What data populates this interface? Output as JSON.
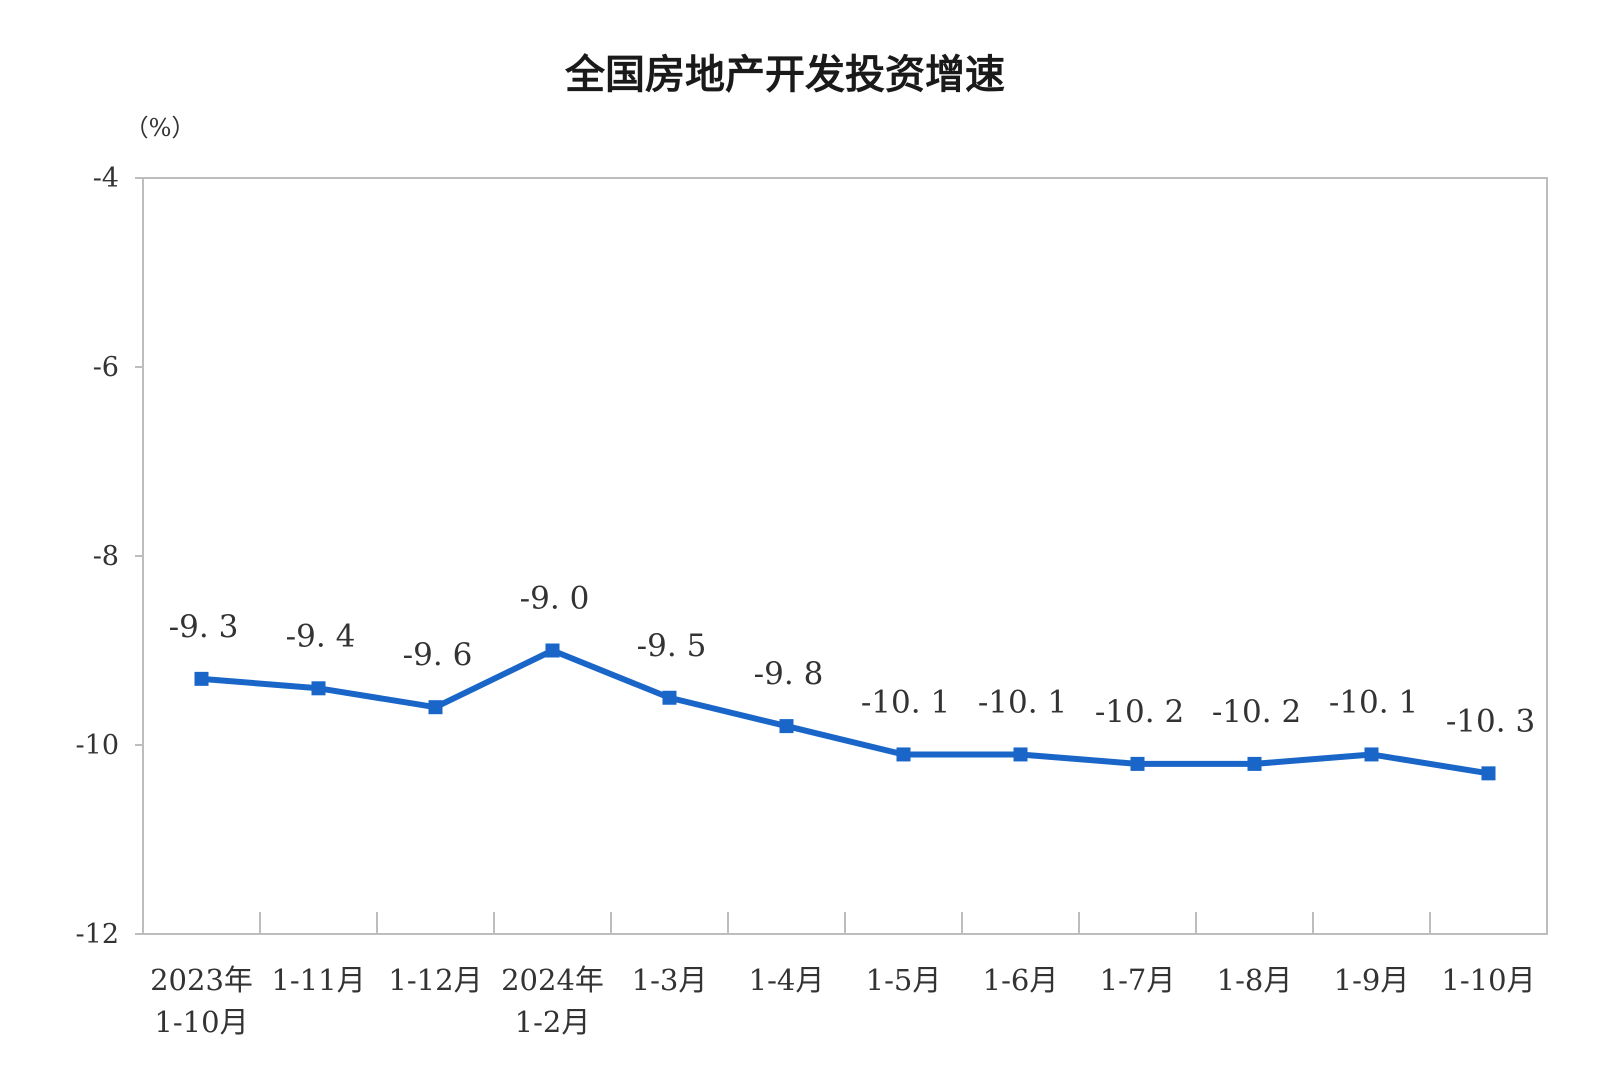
{
  "chart_data": {
    "type": "line",
    "title": "全国房地产开发投资增速",
    "unit_label": "（%）",
    "categories": [
      [
        "2023年",
        "1-10月"
      ],
      [
        "1-11月"
      ],
      [
        "1-12月"
      ],
      [
        "2024年",
        "1-2月"
      ],
      [
        "1-3月"
      ],
      [
        "1-4月"
      ],
      [
        "1-5月"
      ],
      [
        "1-6月"
      ],
      [
        "1-7月"
      ],
      [
        "1-8月"
      ],
      [
        "1-9月"
      ],
      [
        "1-10月"
      ]
    ],
    "series": [
      {
        "values": [
          -9.3,
          -9.4,
          -9.6,
          -9.0,
          -9.5,
          -9.8,
          -10.1,
          -10.1,
          -10.2,
          -10.2,
          -10.1,
          -10.3
        ],
        "color": "#1a66c8"
      }
    ],
    "data_labels": [
      "-9. 3",
      "-9. 4",
      "-9. 6",
      "-9. 0",
      "-9. 5",
      "-9. 8",
      "-10. 1",
      "-10. 1",
      "-10. 2",
      "-10. 2",
      "-10. 1",
      "-10. 3"
    ],
    "yticks": [
      -4,
      -6,
      -8,
      -10,
      -12
    ],
    "ytick_labels": [
      "-4",
      "-6",
      "-8",
      "-10",
      "-12"
    ],
    "ylim": [
      -12,
      -4
    ],
    "grid": false,
    "legend": "none"
  }
}
